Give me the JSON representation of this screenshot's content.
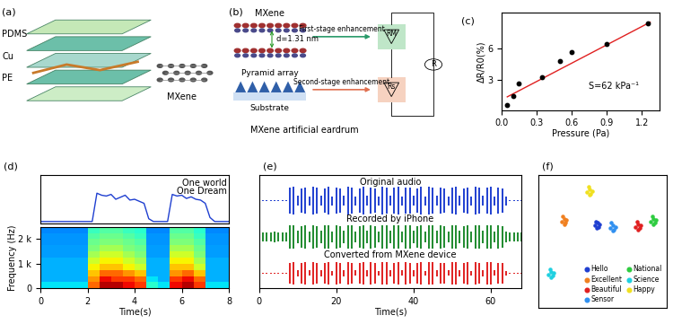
{
  "panel_a": {
    "label": "(a)",
    "layers": [
      "PDMS",
      "Cu",
      "PE"
    ],
    "material": "MXene"
  },
  "panel_b": {
    "label": "(b)",
    "layer": "MXene",
    "spacing": "d=1.31 nm",
    "array": "Pyramid array",
    "substrate": "Substrate",
    "stages": [
      "First-stage enhancement",
      "Second-stage enhancement"
    ],
    "resistors": [
      "RM",
      "Rs"
    ],
    "total": "R",
    "caption": "MXene artificial eardrum"
  },
  "chart_data": [
    {
      "label": "(c)",
      "type": "scatter",
      "xlabel": "Pressure (Pa)",
      "ylabel": "ΔR/R0(%)",
      "x": [
        0.05,
        0.1,
        0.15,
        0.35,
        0.5,
        0.6,
        0.9,
        1.25
      ],
      "values": [
        0.5,
        1.4,
        2.6,
        3.2,
        4.8,
        5.7,
        6.5,
        8.5
      ],
      "color": "#000000",
      "marker": "o",
      "fit": {
        "x": [
          0.05,
          1.27
        ],
        "values": [
          1.3,
          8.6
        ],
        "color": "#e02020"
      },
      "annotation": "S=62 kPa⁻¹",
      "xlim": [
        0,
        1.35
      ],
      "ylim": [
        0,
        9.5
      ],
      "xticks": [
        {
          "value": 0,
          "label": "0.0"
        },
        0.3,
        0.6,
        0.9,
        1.2
      ],
      "yticks": [
        3,
        6
      ]
    },
    {
      "label": "(d)",
      "type": "line",
      "x": [
        0,
        0.2,
        0.4,
        0.6,
        0.8,
        1.0,
        1.2,
        1.4,
        1.6,
        1.8,
        2.0,
        2.2,
        2.4,
        2.6,
        2.8,
        3.0,
        3.2,
        3.4,
        3.6,
        3.8,
        4.0,
        4.2,
        4.4,
        4.6,
        4.8,
        5.0,
        5.2,
        5.4,
        5.6,
        5.8,
        6.0,
        6.2,
        6.4,
        6.6,
        6.8,
        7.0,
        7.2,
        7.4,
        7.6,
        7.8,
        8.0
      ],
      "values": [
        0.05,
        0.05,
        0.05,
        0.05,
        0.05,
        0.05,
        0.05,
        0.05,
        0.05,
        0.05,
        0.05,
        0.05,
        0.75,
        0.7,
        0.68,
        0.72,
        0.6,
        0.65,
        0.7,
        0.58,
        0.6,
        0.55,
        0.5,
        0.12,
        0.05,
        0.05,
        0.05,
        0.05,
        0.72,
        0.68,
        0.7,
        0.62,
        0.66,
        0.6,
        0.58,
        0.5,
        0.15,
        0.05,
        0.05,
        0.05,
        0.05
      ],
      "color": "#1f3fd0",
      "xlim": [
        0,
        8
      ],
      "ylim": [
        0,
        1.2
      ],
      "tick_labels": false,
      "annotations": [
        "One world",
        "One Dream"
      ]
    },
    {
      "type": "heatmap",
      "xlabel": "Time(s)",
      "ylabel": "Frequency (Hz)",
      "x_edges": [
        0,
        0.5,
        1,
        1.5,
        2,
        2.5,
        3,
        3.5,
        4,
        4.5,
        5,
        5.5,
        6,
        6.5,
        7,
        7.5,
        8
      ],
      "y_edges": [
        0,
        250,
        500,
        750,
        1000,
        1250,
        1500,
        1750,
        2000,
        2250,
        2500
      ],
      "cells": [
        [
          0.35,
          0.35,
          0.35,
          0.35,
          0.8,
          0.95,
          0.95,
          0.9,
          0.85,
          0.4,
          0.35,
          0.9,
          0.95,
          0.85,
          0.35,
          0.35
        ],
        [
          0.3,
          0.3,
          0.3,
          0.3,
          0.75,
          0.9,
          0.85,
          0.85,
          0.8,
          0.35,
          0.3,
          0.85,
          0.9,
          0.8,
          0.3,
          0.3
        ],
        [
          0.3,
          0.3,
          0.3,
          0.3,
          0.7,
          0.8,
          0.8,
          0.75,
          0.7,
          0.3,
          0.3,
          0.75,
          0.8,
          0.7,
          0.3,
          0.3
        ],
        [
          0.3,
          0.3,
          0.3,
          0.3,
          0.65,
          0.7,
          0.7,
          0.65,
          0.6,
          0.3,
          0.3,
          0.7,
          0.7,
          0.6,
          0.3,
          0.3
        ],
        [
          0.3,
          0.3,
          0.3,
          0.3,
          0.6,
          0.65,
          0.65,
          0.6,
          0.55,
          0.3,
          0.3,
          0.65,
          0.65,
          0.55,
          0.3,
          0.3
        ],
        [
          0.28,
          0.28,
          0.28,
          0.28,
          0.55,
          0.6,
          0.6,
          0.55,
          0.5,
          0.28,
          0.28,
          0.6,
          0.6,
          0.5,
          0.28,
          0.28
        ],
        [
          0.28,
          0.28,
          0.28,
          0.28,
          0.5,
          0.55,
          0.55,
          0.5,
          0.48,
          0.28,
          0.28,
          0.55,
          0.55,
          0.48,
          0.28,
          0.28
        ],
        [
          0.27,
          0.27,
          0.27,
          0.27,
          0.48,
          0.5,
          0.5,
          0.48,
          0.45,
          0.27,
          0.27,
          0.5,
          0.5,
          0.45,
          0.27,
          0.27
        ],
        [
          0.27,
          0.27,
          0.27,
          0.27,
          0.45,
          0.48,
          0.48,
          0.45,
          0.42,
          0.27,
          0.27,
          0.48,
          0.48,
          0.42,
          0.27,
          0.27
        ],
        [
          0.26,
          0.26,
          0.26,
          0.26,
          0.42,
          0.45,
          0.45,
          0.42,
          0.4,
          0.26,
          0.26,
          0.45,
          0.45,
          0.4,
          0.26,
          0.26
        ]
      ],
      "cell_range": [
        0,
        1
      ],
      "xlim": [
        0,
        8
      ],
      "ylim": [
        0,
        2500
      ],
      "xticks": [
        0,
        2,
        4,
        6,
        8
      ],
      "yticks": [
        0,
        {
          "value": 1000,
          "label": "1 k"
        },
        {
          "value": 2000,
          "label": "2 k"
        }
      ]
    },
    {
      "label": "(e)",
      "type": "waveform",
      "xlabel": "Time(s)",
      "x": [
        0,
        1,
        2,
        3,
        4,
        5,
        6,
        7,
        8,
        9,
        10,
        11,
        12,
        13,
        14,
        15,
        16,
        17,
        18,
        19,
        20,
        21,
        22,
        23,
        24,
        25,
        26,
        27,
        28,
        29,
        30,
        31,
        32,
        33,
        34,
        35,
        36,
        37,
        38,
        39,
        40,
        41,
        42,
        43,
        44,
        45,
        46,
        47,
        48,
        49,
        50,
        51,
        52,
        53,
        54,
        55,
        56,
        57,
        58,
        59,
        60,
        61,
        62,
        63,
        64,
        65,
        66,
        67,
        68
      ],
      "series": [
        {
          "name": "Original audio",
          "color": "#1f3fd0",
          "values": [
            0.04,
            0.04,
            0.04,
            0.04,
            0.04,
            0.04,
            0.04,
            0.04,
            0.85,
            0.9,
            0.35,
            0.8,
            0.88,
            0.3,
            0.9,
            0.85,
            0.32,
            0.82,
            0.9,
            0.3,
            0.88,
            0.8,
            0.35,
            0.9,
            0.86,
            0.3,
            0.8,
            0.9,
            0.33,
            0.86,
            0.82,
            0.3,
            0.9,
            0.88,
            0.35,
            0.84,
            0.9,
            0.3,
            0.88,
            0.84,
            0.32,
            0.82,
            0.9,
            0.3,
            0.9,
            0.86,
            0.35,
            0.85,
            0.8,
            0.3,
            0.88,
            0.9,
            0.33,
            0.8,
            0.86,
            0.3,
            0.9,
            0.84,
            0.32,
            0.86,
            0.9,
            0.3,
            0.84,
            0.8,
            0.3,
            0.04,
            0.04,
            0.04,
            0.04
          ]
        },
        {
          "name": "Recorded by iPhone",
          "color": "#1e8a2e",
          "values": [
            0.3,
            0.32,
            0.28,
            0.3,
            0.33,
            0.29,
            0.31,
            0.3,
            0.75,
            0.8,
            0.4,
            0.72,
            0.78,
            0.38,
            0.8,
            0.74,
            0.4,
            0.76,
            0.8,
            0.37,
            0.78,
            0.72,
            0.4,
            0.8,
            0.77,
            0.38,
            0.73,
            0.8,
            0.4,
            0.77,
            0.74,
            0.37,
            0.8,
            0.78,
            0.4,
            0.75,
            0.8,
            0.38,
            0.78,
            0.75,
            0.4,
            0.74,
            0.8,
            0.37,
            0.8,
            0.77,
            0.4,
            0.76,
            0.72,
            0.38,
            0.78,
            0.8,
            0.4,
            0.72,
            0.77,
            0.37,
            0.8,
            0.75,
            0.4,
            0.77,
            0.8,
            0.38,
            0.75,
            0.72,
            0.37,
            0.3,
            0.31,
            0.29,
            0.3
          ]
        },
        {
          "name": "Converted from MXene device",
          "color": "#e02020",
          "values": [
            0.03,
            0.03,
            0.03,
            0.03,
            0.03,
            0.03,
            0.03,
            0.03,
            0.7,
            0.75,
            0.2,
            0.66,
            0.72,
            0.18,
            0.74,
            0.7,
            0.2,
            0.7,
            0.75,
            0.17,
            0.72,
            0.66,
            0.2,
            0.75,
            0.7,
            0.18,
            0.68,
            0.74,
            0.2,
            0.72,
            0.7,
            0.17,
            0.75,
            0.72,
            0.2,
            0.7,
            0.75,
            0.18,
            0.72,
            0.7,
            0.2,
            0.68,
            0.75,
            0.17,
            0.74,
            0.72,
            0.2,
            0.7,
            0.66,
            0.18,
            0.72,
            0.75,
            0.2,
            0.66,
            0.72,
            0.17,
            0.75,
            0.7,
            0.2,
            0.72,
            0.74,
            0.18,
            0.7,
            0.68,
            0.17,
            0.03,
            0.03,
            0.03,
            0.03
          ]
        }
      ],
      "xlim": [
        0,
        68
      ],
      "xticks": [
        0,
        20,
        40,
        60
      ],
      "tick_labels": "x"
    },
    {
      "label": "(f)",
      "type": "scatter",
      "marker": "o",
      "legend": "lower right",
      "tick_labels": false,
      "xlim": [
        0,
        10
      ],
      "ylim": [
        0,
        10
      ],
      "series": [
        {
          "name": "Hello",
          "color": "#1f3fd0",
          "x": [
            4.4,
            4.6,
            4.8,
            4.5,
            4.7,
            4.55
          ],
          "values": [
            6.2,
            6.4,
            6.3,
            6.5,
            6.1,
            6.0
          ]
        },
        {
          "name": "National",
          "color": "#2ecc40",
          "x": [
            8.8,
            9.0,
            9.2,
            8.9,
            9.1,
            9.0
          ],
          "values": [
            6.5,
            6.7,
            6.6,
            6.9,
            6.4,
            6.3
          ]
        },
        {
          "name": "Excellent",
          "color": "#f08020",
          "x": [
            1.8,
            2.0,
            2.2,
            1.9,
            2.1,
            2.0
          ],
          "values": [
            6.5,
            6.7,
            6.6,
            6.9,
            6.4,
            6.3
          ]
        },
        {
          "name": "Science",
          "color": "#20d0e0",
          "x": [
            0.8,
            1.0,
            1.2,
            0.9,
            1.1,
            1.0
          ],
          "values": [
            2.5,
            2.7,
            2.6,
            2.9,
            2.4,
            2.3
          ]
        },
        {
          "name": "Beautiful",
          "color": "#e02020",
          "x": [
            7.6,
            7.8,
            8.0,
            7.7,
            7.9,
            7.8
          ],
          "values": [
            6.1,
            6.3,
            6.2,
            6.5,
            6.0,
            5.9
          ]
        },
        {
          "name": "Happy",
          "color": "#f0e020",
          "x": [
            3.8,
            4.0,
            4.2,
            3.9,
            4.1,
            4.0
          ],
          "values": [
            8.7,
            8.9,
            8.8,
            9.1,
            8.6,
            8.5
          ]
        },
        {
          "name": "Sensor",
          "color": "#3090f0",
          "x": [
            5.6,
            5.8,
            6.0,
            5.7,
            5.9,
            5.8
          ],
          "values": [
            6.0,
            6.2,
            6.1,
            6.4,
            5.9,
            5.8
          ]
        }
      ]
    }
  ]
}
